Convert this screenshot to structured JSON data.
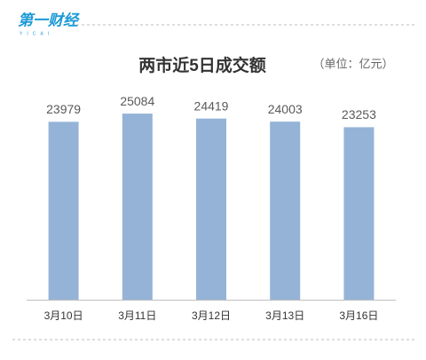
{
  "logo": {
    "name": "第一财经",
    "sub": "YICAI"
  },
  "chart_data": {
    "type": "bar",
    "title": "两市近5日成交额",
    "unit": "（单位：亿元）",
    "categories": [
      "3月10日",
      "3月11日",
      "3月12日",
      "3月13日",
      "3月16日"
    ],
    "values": [
      23979,
      25084,
      24419,
      24003,
      23253
    ],
    "color": "#95b3d7",
    "ylim": [
      0,
      30000
    ]
  }
}
